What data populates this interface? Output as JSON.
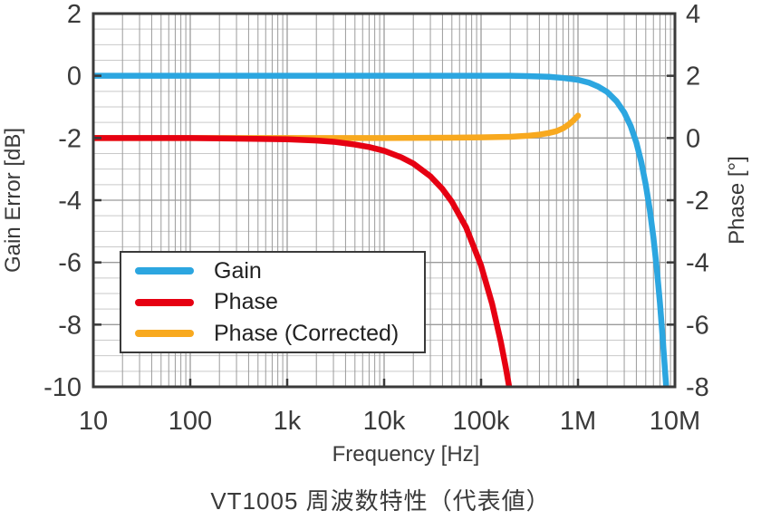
{
  "chart_data": {
    "type": "line",
    "title": "VT1005 周波数特性（代表値）",
    "xlabel": "Frequency [Hz]",
    "ylabel_left": "Gain Error [dB]",
    "ylabel_right": "Phase [°]",
    "x_scale": "log",
    "x_range": [
      10,
      10000000
    ],
    "x_ticks": [
      {
        "value": 10,
        "label": "10"
      },
      {
        "value": 100,
        "label": "100"
      },
      {
        "value": 1000,
        "label": "1k"
      },
      {
        "value": 10000,
        "label": "10k"
      },
      {
        "value": 100000,
        "label": "100k"
      },
      {
        "value": 1000000,
        "label": "1M"
      },
      {
        "value": 10000000,
        "label": "10M"
      }
    ],
    "y_left": {
      "min": -10,
      "max": 2,
      "major_step": 2,
      "minor_step": 0.5,
      "ticks": [
        {
          "value": 2,
          "label": "2"
        },
        {
          "value": 0,
          "label": "0"
        },
        {
          "value": -2,
          "label": "-2"
        },
        {
          "value": -4,
          "label": "-4"
        },
        {
          "value": -6,
          "label": "-6"
        },
        {
          "value": -8,
          "label": "-8"
        },
        {
          "value": -10,
          "label": "-10"
        }
      ]
    },
    "y_right": {
      "min": -8,
      "max": 4,
      "major_step": 2,
      "ticks": [
        {
          "value": 4,
          "label": "4"
        },
        {
          "value": 2,
          "label": "2"
        },
        {
          "value": 0,
          "label": "0"
        },
        {
          "value": -2,
          "label": "-2"
        },
        {
          "value": -4,
          "label": "-4"
        },
        {
          "value": -6,
          "label": "-6"
        },
        {
          "value": -8,
          "label": "-8"
        }
      ]
    },
    "grid": true,
    "legend_position": "lower left",
    "series": [
      {
        "name": "Gain",
        "axis": "left",
        "color": "#2CA6E0",
        "points": [
          [
            10,
            0
          ],
          [
            100,
            0
          ],
          [
            1000,
            0
          ],
          [
            10000,
            0
          ],
          [
            100000,
            0
          ],
          [
            200000,
            0
          ],
          [
            300000,
            -0.01
          ],
          [
            500000,
            -0.03
          ],
          [
            700000,
            -0.07
          ],
          [
            1000000,
            -0.13
          ],
          [
            1300000,
            -0.22
          ],
          [
            1600000,
            -0.34
          ],
          [
            2000000,
            -0.52
          ],
          [
            2500000,
            -0.82
          ],
          [
            3000000,
            -1.18
          ],
          [
            3500000,
            -1.62
          ],
          [
            4000000,
            -2.15
          ],
          [
            4500000,
            -2.78
          ],
          [
            5000000,
            -3.5
          ],
          [
            5500000,
            -4.3
          ],
          [
            6000000,
            -5.2
          ],
          [
            6500000,
            -6.2
          ],
          [
            7000000,
            -7.3
          ],
          [
            7500000,
            -8.5
          ],
          [
            8000000,
            -9.7
          ],
          [
            8400000,
            -10.6
          ]
        ]
      },
      {
        "name": "Phase",
        "axis": "right",
        "color": "#E60012",
        "points": [
          [
            10,
            0
          ],
          [
            100,
            0
          ],
          [
            1000,
            -0.04
          ],
          [
            2000,
            -0.08
          ],
          [
            3000,
            -0.12
          ],
          [
            5000,
            -0.21
          ],
          [
            7000,
            -0.29
          ],
          [
            10000,
            -0.41
          ],
          [
            15000,
            -0.62
          ],
          [
            20000,
            -0.82
          ],
          [
            30000,
            -1.23
          ],
          [
            40000,
            -1.64
          ],
          [
            50000,
            -2.05
          ],
          [
            70000,
            -2.87
          ],
          [
            100000,
            -4.1
          ],
          [
            130000,
            -5.33
          ],
          [
            160000,
            -6.56
          ],
          [
            180000,
            -7.38
          ],
          [
            195000,
            -8.0
          ],
          [
            205000,
            -8.5
          ]
        ]
      },
      {
        "name": "Phase (Corrected)",
        "axis": "right",
        "color": "#F8A91F",
        "points": [
          [
            10,
            0
          ],
          [
            100,
            0
          ],
          [
            1000,
            0
          ],
          [
            10000,
            0
          ],
          [
            50000,
            0.01
          ],
          [
            100000,
            0.02
          ],
          [
            200000,
            0.04
          ],
          [
            300000,
            0.07
          ],
          [
            400000,
            0.11
          ],
          [
            500000,
            0.16
          ],
          [
            600000,
            0.22
          ],
          [
            700000,
            0.31
          ],
          [
            800000,
            0.43
          ],
          [
            900000,
            0.57
          ],
          [
            1000000,
            0.72
          ]
        ]
      }
    ]
  }
}
